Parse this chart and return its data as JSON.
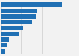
{
  "values": [
    30,
    18,
    17,
    15,
    11,
    9,
    4,
    3,
    2
  ],
  "bar_color": "#2070b4",
  "background_color": "#f2f2f2",
  "grid_color": "#cccccc",
  "xlim": [
    0,
    38
  ]
}
